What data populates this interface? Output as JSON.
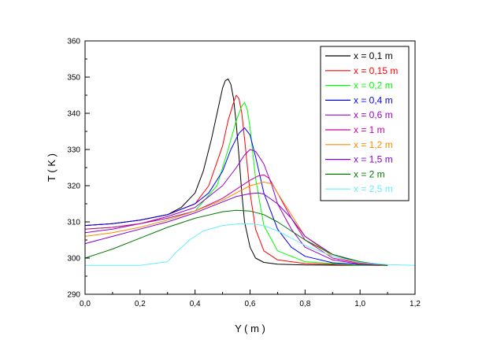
{
  "chart_data": {
    "type": "line",
    "xlabel": "Y ( m )",
    "ylabel": "T ( K )",
    "xlim": [
      0.0,
      1.2
    ],
    "ylim": [
      290,
      360
    ],
    "x_ticks": [
      0.0,
      0.2,
      0.4,
      0.6,
      0.8,
      1.0,
      1.2
    ],
    "x_tick_labels": [
      "0,0",
      "0,2",
      "0,4",
      "0,6",
      "0,8",
      "1,0",
      "1,2"
    ],
    "y_ticks": [
      290,
      300,
      310,
      320,
      330,
      340,
      350,
      360
    ],
    "y_tick_labels": [
      "290",
      "300",
      "310",
      "320",
      "330",
      "340",
      "350",
      "360"
    ],
    "grid": false,
    "legend_position": "top-right",
    "series": [
      {
        "name": "x = 0,1 m",
        "color": "#000000",
        "x": [
          0.0,
          0.1,
          0.2,
          0.3,
          0.35,
          0.4,
          0.43,
          0.46,
          0.48,
          0.5,
          0.51,
          0.52,
          0.53,
          0.54,
          0.55,
          0.56,
          0.57,
          0.58,
          0.6,
          0.62,
          0.65,
          0.7,
          0.8,
          1.0,
          1.1
        ],
        "y": [
          309,
          309.5,
          310.5,
          312,
          314,
          318,
          324,
          333,
          340,
          347,
          349,
          349.5,
          348,
          344,
          337,
          328,
          318,
          310,
          303,
          300,
          298.8,
          298.3,
          298.1,
          298,
          298
        ]
      },
      {
        "name": "x = 0,15 m",
        "color": "#ff0000",
        "x": [
          0.0,
          0.1,
          0.2,
          0.3,
          0.4,
          0.45,
          0.5,
          0.52,
          0.54,
          0.55,
          0.56,
          0.57,
          0.58,
          0.6,
          0.62,
          0.65,
          0.7,
          0.8,
          1.0,
          1.1
        ],
        "y": [
          309,
          309.5,
          310.5,
          312,
          315,
          320,
          331,
          338,
          343,
          345,
          344,
          340,
          333,
          318,
          308,
          302,
          299.5,
          298.5,
          298,
          298
        ]
      },
      {
        "name": "x = 0,2 m",
        "color": "#00ff00",
        "x": [
          0.0,
          0.1,
          0.2,
          0.3,
          0.4,
          0.48,
          0.52,
          0.55,
          0.57,
          0.58,
          0.59,
          0.6,
          0.62,
          0.65,
          0.7,
          0.8,
          1.0,
          1.1
        ],
        "y": [
          308,
          308.5,
          309.5,
          311,
          313,
          320,
          330,
          338,
          342,
          343,
          341,
          336,
          322,
          309,
          302,
          299,
          298,
          298
        ]
      },
      {
        "name": "x = 0,4 m",
        "color": "#0000ff",
        "x": [
          0.0,
          0.1,
          0.2,
          0.3,
          0.4,
          0.45,
          0.5,
          0.53,
          0.56,
          0.58,
          0.6,
          0.62,
          0.65,
          0.7,
          0.75,
          0.8,
          0.9,
          1.0,
          1.1
        ],
        "y": [
          309,
          309.5,
          310.5,
          312,
          315,
          318,
          324,
          330,
          334.5,
          336,
          334,
          328,
          318,
          308,
          303,
          300.5,
          298.7,
          298.2,
          298
        ]
      },
      {
        "name": "x = 0,6 m",
        "color": "#9900cc",
        "x": [
          0.0,
          0.1,
          0.2,
          0.3,
          0.4,
          0.5,
          0.55,
          0.58,
          0.6,
          0.62,
          0.65,
          0.68,
          0.7,
          0.75,
          0.8,
          0.9,
          1.0,
          1.1
        ],
        "y": [
          307,
          308,
          309.5,
          311.5,
          314,
          320,
          325,
          328.5,
          330,
          329.5,
          326,
          320,
          315,
          308,
          303,
          299.5,
          298.3,
          298
        ]
      },
      {
        "name": "x = 1 m",
        "color": "#cc0099",
        "x": [
          0.0,
          0.1,
          0.2,
          0.3,
          0.4,
          0.5,
          0.55,
          0.6,
          0.63,
          0.65,
          0.67,
          0.7,
          0.75,
          0.8,
          0.9,
          1.0,
          1.1
        ],
        "y": [
          308,
          308.5,
          309.5,
          311,
          313,
          316.5,
          319,
          321.5,
          322.7,
          323,
          322,
          318,
          311,
          305,
          300,
          298.5,
          298
        ]
      },
      {
        "name": "x = 1,2 m",
        "color": "#ff8800",
        "x": [
          0.0,
          0.1,
          0.2,
          0.3,
          0.4,
          0.5,
          0.55,
          0.6,
          0.65,
          0.68,
          0.7,
          0.75,
          0.8,
          0.9,
          1.0,
          1.1
        ],
        "y": [
          306,
          307,
          308.5,
          310.5,
          313,
          316,
          318,
          320,
          321,
          320.5,
          318,
          312,
          306,
          300.5,
          298.5,
          298
        ]
      },
      {
        "name": "x = 1,5 m",
        "color": "#8800cc",
        "x": [
          0.0,
          0.1,
          0.2,
          0.3,
          0.4,
          0.5,
          0.55,
          0.6,
          0.63,
          0.65,
          0.7,
          0.75,
          0.8,
          0.9,
          1.0,
          1.1
        ],
        "y": [
          304,
          306,
          308,
          310,
          312.5,
          315.5,
          317,
          317.8,
          318,
          317.7,
          315,
          311,
          306,
          301,
          298.7,
          298
        ]
      },
      {
        "name": "x = 2 m",
        "color": "#007700",
        "x": [
          0.0,
          0.1,
          0.2,
          0.3,
          0.4,
          0.5,
          0.55,
          0.6,
          0.65,
          0.7,
          0.75,
          0.8,
          0.9,
          1.0,
          1.1
        ],
        "y": [
          300,
          302.5,
          305.5,
          308.5,
          311,
          312.8,
          313.2,
          313,
          312,
          310,
          307.5,
          305,
          301,
          299,
          298
        ]
      },
      {
        "name": "x = 2,5 m",
        "color": "#66eeff",
        "x": [
          0.0,
          0.1,
          0.2,
          0.28,
          0.3,
          0.33,
          0.38,
          0.43,
          0.5,
          0.55,
          0.6,
          0.65,
          0.7,
          0.75,
          0.8,
          0.9,
          1.0,
          1.1,
          1.2
        ],
        "y": [
          298,
          298,
          298,
          298.8,
          299,
          301.5,
          305,
          307.5,
          309,
          309.4,
          309.5,
          309,
          307.5,
          305.5,
          303.5,
          300.5,
          298.8,
          298.2,
          298
        ]
      }
    ]
  }
}
